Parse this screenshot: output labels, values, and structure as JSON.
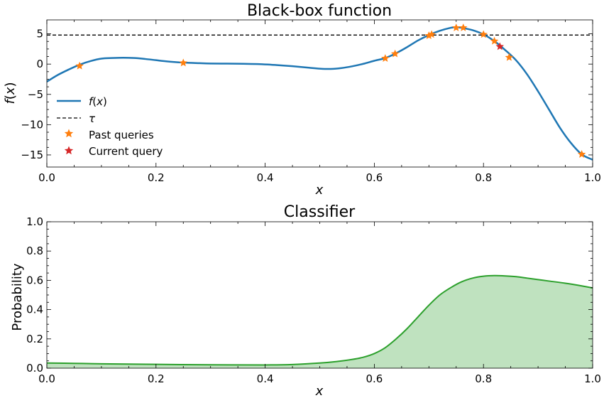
{
  "colors": {
    "f_line": "#1f77b4",
    "past": "#ff7f0e",
    "current": "#d62728",
    "classifier_line": "#2ca02c",
    "classifier_fill": "#2ca02c",
    "tau_line": "#000000"
  },
  "chart_data": [
    {
      "type": "line",
      "title": "Black-box function",
      "xlabel": "x",
      "ylabel": "f(x)",
      "xlim": [
        0,
        1
      ],
      "ylim": [
        -17,
        7.3
      ],
      "xticks": [
        0.0,
        0.2,
        0.4,
        0.6,
        0.8,
        1.0
      ],
      "xtick_labels": [
        "0.0",
        "0.2",
        "0.4",
        "0.6",
        "0.8",
        "1.0"
      ],
      "yticks": [
        5,
        0,
        -5,
        -10,
        -15
      ],
      "ytick_labels": [
        "5",
        "0",
        "−5",
        "−10",
        "−15"
      ],
      "grid": false,
      "legend_position": "middle-left",
      "legend": [
        "f(x)",
        "τ",
        "Past queries",
        "Current query"
      ],
      "series": [
        {
          "name": "f(x)",
          "x": [
            0.0,
            0.02,
            0.04,
            0.06,
            0.08,
            0.1,
            0.12,
            0.14,
            0.16,
            0.18,
            0.2,
            0.22,
            0.25,
            0.28,
            0.3,
            0.33,
            0.36,
            0.39,
            0.42,
            0.45,
            0.48,
            0.5,
            0.52,
            0.54,
            0.56,
            0.58,
            0.6,
            0.62,
            0.64,
            0.66,
            0.68,
            0.7,
            0.72,
            0.74,
            0.75,
            0.76,
            0.78,
            0.8,
            0.82,
            0.84,
            0.86,
            0.88,
            0.9,
            0.92,
            0.94,
            0.96,
            0.98,
            1.0
          ],
          "y": [
            -2.9,
            -1.8,
            -0.9,
            -0.1,
            0.5,
            0.9,
            1.0,
            1.05,
            1.0,
            0.85,
            0.65,
            0.45,
            0.25,
            0.15,
            0.1,
            0.08,
            0.05,
            0.0,
            -0.15,
            -0.35,
            -0.6,
            -0.75,
            -0.8,
            -0.65,
            -0.35,
            0.05,
            0.55,
            1.0,
            1.8,
            2.8,
            3.9,
            4.8,
            5.5,
            6.0,
            6.1,
            6.0,
            5.6,
            4.9,
            3.8,
            2.3,
            0.6,
            -1.7,
            -4.5,
            -7.5,
            -10.5,
            -13.0,
            -14.9,
            -15.8
          ]
        },
        {
          "name": "τ",
          "y_constant": 4.8
        },
        {
          "name": "Past queries",
          "x": [
            0.06,
            0.25,
            0.62,
            0.638,
            0.7,
            0.705,
            0.75,
            0.763,
            0.8,
            0.82,
            0.847,
            0.98
          ],
          "y": [
            -0.3,
            0.2,
            0.95,
            1.7,
            4.7,
            4.9,
            6.0,
            6.0,
            4.9,
            3.8,
            1.1,
            -14.9
          ]
        },
        {
          "name": "Current query",
          "x": [
            0.83
          ],
          "y": [
            2.9
          ]
        }
      ]
    },
    {
      "type": "area",
      "title": "Classifier",
      "xlabel": "x",
      "ylabel": "Probability",
      "xlim": [
        0,
        1
      ],
      "ylim": [
        0,
        1
      ],
      "xticks": [
        0.0,
        0.2,
        0.4,
        0.6,
        0.8,
        1.0
      ],
      "xtick_labels": [
        "0.0",
        "0.2",
        "0.4",
        "0.6",
        "0.8",
        "1.0"
      ],
      "yticks": [
        0.0,
        0.2,
        0.4,
        0.6,
        0.8,
        1.0
      ],
      "ytick_labels": [
        "0.0",
        "0.2",
        "0.4",
        "0.6",
        "0.8",
        "1.0"
      ],
      "grid": false,
      "series": [
        {
          "x": [
            0.0,
            0.05,
            0.1,
            0.2,
            0.3,
            0.4,
            0.45,
            0.5,
            0.53,
            0.56,
            0.58,
            0.6,
            0.62,
            0.64,
            0.66,
            0.68,
            0.7,
            0.72,
            0.74,
            0.76,
            0.78,
            0.8,
            0.82,
            0.84,
            0.86,
            0.88,
            0.9,
            0.92,
            0.95,
            0.98,
            1.0
          ],
          "y": [
            0.035,
            0.033,
            0.03,
            0.026,
            0.023,
            0.022,
            0.025,
            0.035,
            0.045,
            0.06,
            0.075,
            0.1,
            0.14,
            0.2,
            0.27,
            0.35,
            0.43,
            0.5,
            0.55,
            0.59,
            0.615,
            0.628,
            0.632,
            0.63,
            0.625,
            0.615,
            0.605,
            0.595,
            0.58,
            0.562,
            0.548
          ]
        }
      ]
    }
  ]
}
